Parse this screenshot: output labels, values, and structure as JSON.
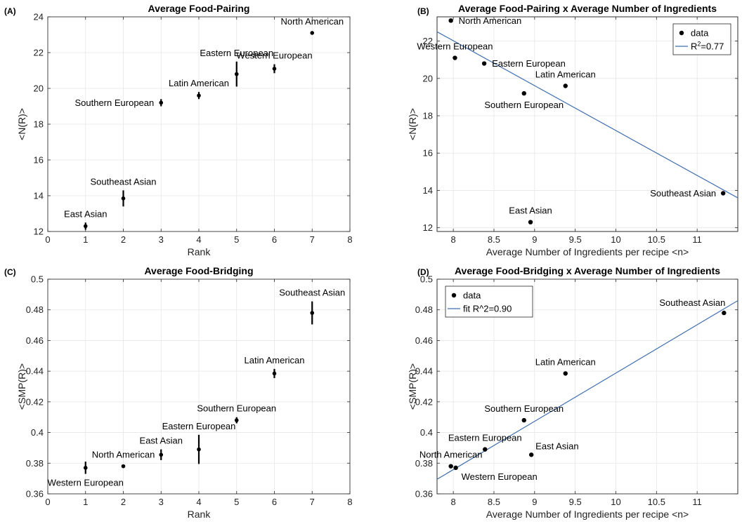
{
  "chart_data": [
    {
      "type": "scatter",
      "panel": "(A)",
      "title": "Average Food-Pairing",
      "xlabel": "Rank",
      "ylabel": "<N(R)>",
      "xlim": [
        0,
        8
      ],
      "ylim": [
        12,
        24
      ],
      "xticks": [
        0,
        1,
        2,
        3,
        4,
        5,
        6,
        7,
        8
      ],
      "yticks": [
        12,
        14,
        16,
        18,
        20,
        22,
        24
      ],
      "grid": true,
      "points": [
        {
          "label": "East Asian",
          "x": 1,
          "y": 12.3,
          "err": 0.2,
          "label_pos": "above"
        },
        {
          "label": "Southeast Asian",
          "x": 2,
          "y": 13.85,
          "err": 0.45,
          "label_pos": "above"
        },
        {
          "label": "Southern European",
          "x": 3,
          "y": 19.2,
          "err": 0.2,
          "label_pos": "left"
        },
        {
          "label": "Latin American",
          "x": 4,
          "y": 19.6,
          "err": 0.2,
          "label_pos": "above"
        },
        {
          "label": "Eastern European",
          "x": 5,
          "y": 20.8,
          "err": 0.7,
          "label_pos": "above"
        },
        {
          "label": "Western European",
          "x": 6,
          "y": 21.1,
          "err": 0.25,
          "label_pos": "above"
        },
        {
          "label": "North American",
          "x": 7,
          "y": 23.1,
          "err": 0.05,
          "label_pos": "above"
        }
      ]
    },
    {
      "type": "scatter",
      "panel": "(B)",
      "title": "Average Food-Pairing x Average Number of Ingredients",
      "xlabel": "Average Number of Ingredients per recipe <n>",
      "ylabel": "<N(R)>",
      "xlim": [
        7.8,
        11.5
      ],
      "ylim": [
        11.8,
        23.3
      ],
      "xticks": [
        8,
        8.5,
        9,
        9.5,
        10,
        10.5,
        11
      ],
      "yticks": [
        12,
        14,
        16,
        18,
        20,
        22
      ],
      "grid": true,
      "legend": {
        "position": "top-right",
        "entries": [
          {
            "text": "data",
            "kind": "marker"
          },
          {
            "text": "R",
            "sup": "2",
            "tail": "=0.77",
            "kind": "line"
          }
        ]
      },
      "fit": {
        "x": [
          7.8,
          11.5
        ],
        "y": [
          22.5,
          13.6
        ],
        "color": "#3f6fae"
      },
      "points": [
        {
          "label": "North American",
          "x": 7.97,
          "y": 23.1,
          "label_pos": "right"
        },
        {
          "label": "Western European",
          "x": 8.02,
          "y": 21.1,
          "label_pos": "above"
        },
        {
          "label": "Eastern European",
          "x": 8.38,
          "y": 20.8,
          "label_pos": "right"
        },
        {
          "label": "Southern European",
          "x": 8.87,
          "y": 19.2,
          "label_pos": "below"
        },
        {
          "label": "Latin American",
          "x": 9.38,
          "y": 19.6,
          "label_pos": "above"
        },
        {
          "label": "Southeast Asian",
          "x": 11.32,
          "y": 13.85,
          "label_pos": "left"
        },
        {
          "label": "East Asian",
          "x": 8.95,
          "y": 12.3,
          "label_pos": "above"
        }
      ]
    },
    {
      "type": "scatter",
      "panel": "(C)",
      "title": "Average Food-Bridging",
      "xlabel": "Rank",
      "ylabel": "<SMP(R)>",
      "xlim": [
        0,
        8
      ],
      "ylim": [
        0.36,
        0.5
      ],
      "xticks": [
        0,
        1,
        2,
        3,
        4,
        5,
        6,
        7,
        8
      ],
      "yticks": [
        0.36,
        0.38,
        0.4,
        0.42,
        0.44,
        0.46,
        0.48,
        0.5
      ],
      "grid": true,
      "points": [
        {
          "label": "Western European",
          "x": 1,
          "y": 0.377,
          "err": 0.004,
          "label_pos": "below"
        },
        {
          "label": "North American",
          "x": 2,
          "y": 0.378,
          "err": 0.0,
          "label_pos": "above"
        },
        {
          "label": "East Asian",
          "x": 3,
          "y": 0.3855,
          "err": 0.0035,
          "label_pos": "above"
        },
        {
          "label": "Eastern European",
          "x": 4,
          "y": 0.389,
          "err": 0.0095,
          "label_pos": "above"
        },
        {
          "label": "Southern European",
          "x": 5,
          "y": 0.408,
          "err": 0.002,
          "label_pos": "above"
        },
        {
          "label": "Latin American",
          "x": 6,
          "y": 0.4385,
          "err": 0.003,
          "label_pos": "above"
        },
        {
          "label": "Southeast Asian",
          "x": 7,
          "y": 0.478,
          "err": 0.0075,
          "label_pos": "above"
        }
      ]
    },
    {
      "type": "scatter",
      "panel": "(D)",
      "title": "Average Food-Bridging x Average Number of Ingredients",
      "xlabel": "Average Number of Ingredients per recipe <n>",
      "ylabel": "<SMP(R)>",
      "xlim": [
        7.8,
        11.5
      ],
      "ylim": [
        0.36,
        0.5
      ],
      "xticks": [
        8,
        8.5,
        9,
        9.5,
        10,
        10.5,
        11
      ],
      "yticks": [
        0.36,
        0.38,
        0.4,
        0.42,
        0.44,
        0.46,
        0.48,
        0.5
      ],
      "grid": true,
      "legend": {
        "position": "top-left",
        "entries": [
          {
            "text": "data",
            "kind": "marker"
          },
          {
            "text": "fit R^2=0.90",
            "kind": "line"
          }
        ]
      },
      "fit": {
        "x": [
          7.8,
          11.5
        ],
        "y": [
          0.3695,
          0.486
        ],
        "color": "#3f6fae"
      },
      "points": [
        {
          "label": "North American",
          "x": 7.97,
          "y": 0.378,
          "label_pos": "above"
        },
        {
          "label": "Western European",
          "x": 8.03,
          "y": 0.377,
          "label_pos": "below-right"
        },
        {
          "label": "Eastern European",
          "x": 8.39,
          "y": 0.389,
          "label_pos": "above"
        },
        {
          "label": "East Asian",
          "x": 8.96,
          "y": 0.3855,
          "label_pos": "above-right"
        },
        {
          "label": "Southern European",
          "x": 8.87,
          "y": 0.408,
          "label_pos": "above"
        },
        {
          "label": "Latin American",
          "x": 9.38,
          "y": 0.4385,
          "label_pos": "above"
        },
        {
          "label": "Southeast Asian",
          "x": 11.33,
          "y": 0.478,
          "label_pos": "above-left"
        }
      ]
    }
  ]
}
